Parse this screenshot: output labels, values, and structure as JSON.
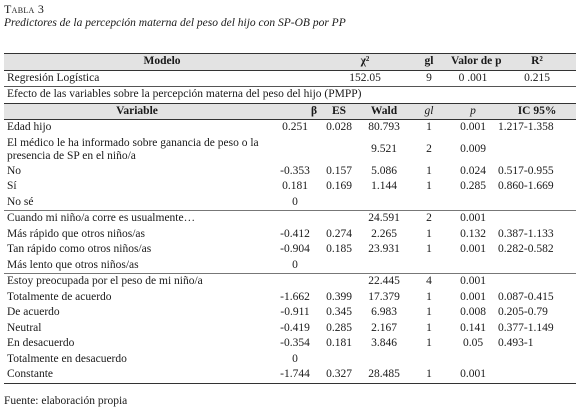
{
  "table_label": "Tabla 3",
  "table_title": "Predictores de la percepción materna del peso del hijo con SP-OB por PP",
  "header": {
    "modelo": "Modelo",
    "chi2": "χ²",
    "gl": "gl",
    "valor_p": "Valor de p",
    "r2": "R²"
  },
  "regresion": {
    "label": "Regresión Logística",
    "chi2": "152.05",
    "gl": "9",
    "valor_p": "0 .001",
    "r2": "0.215"
  },
  "effect_title": "Efecto de las variables sobre la percepción materna del peso del hijo (PMPP)",
  "var_header": {
    "variable": "Variable",
    "beta": "β",
    "es": "ES",
    "wald": "Wald",
    "gl": "gl",
    "p": "p",
    "ic": "IC 95%"
  },
  "rows": [
    {
      "label": "Edad hijo",
      "beta": "0.251",
      "es": "0.028",
      "wald": "80.793",
      "gl": "1",
      "p": "0.001",
      "ic": "1.217-1.358"
    },
    {
      "label": "El médico le ha informado sobre ganancia de peso o la presencia de SP en el niño/a",
      "beta": "",
      "es": "",
      "wald": "9.521",
      "gl": "2",
      "p": "0.009",
      "ic": ""
    },
    {
      "label": "No",
      "beta": "-0.353",
      "es": "0.157",
      "wald": "5.086",
      "gl": "1",
      "p": "0.024",
      "ic": "0.517-0.955"
    },
    {
      "label": "Sí",
      "beta": "0.181",
      "es": "0.169",
      "wald": "1.144",
      "gl": "1",
      "p": "0.285",
      "ic": "0.860-1.669"
    },
    {
      "label": "No sé",
      "beta": "0",
      "es": "",
      "wald": "",
      "gl": "",
      "p": "",
      "ic": ""
    },
    {
      "label": "Cuando mi niño/a corre es usualmente…",
      "beta": "",
      "es": "",
      "wald": "24.591",
      "gl": "2",
      "p": "0.001",
      "ic": ""
    },
    {
      "label": "Más rápido que otros niños/as",
      "beta": "-0.412",
      "es": "0.274",
      "wald": "2.265",
      "gl": "1",
      "p": "0.132",
      "ic": "0.387-1.133"
    },
    {
      "label": "Tan rápido como otros niños/as",
      "beta": "-0.904",
      "es": "0.185",
      "wald": "23.931",
      "gl": "1",
      "p": "0.001",
      "ic": "0.282-0.582"
    },
    {
      "label": "Más lento que otros niños/as",
      "beta": "0",
      "es": "",
      "wald": "",
      "gl": "",
      "p": "",
      "ic": ""
    },
    {
      "label": "Estoy preocupada por el peso de mi niño/a",
      "beta": "",
      "es": "",
      "wald": "22.445",
      "gl": "4",
      "p": "0.001",
      "ic": ""
    },
    {
      "label": "Totalmente de acuerdo",
      "beta": "-1.662",
      "es": "0.399",
      "wald": "17.379",
      "gl": "1",
      "p": "0.001",
      "ic": "0.087-0.415"
    },
    {
      "label": "De acuerdo",
      "beta": "-0.911",
      "es": "0.345",
      "wald": "6.983",
      "gl": "1",
      "p": "0.008",
      "ic": "0.205-0.79"
    },
    {
      "label": "Neutral",
      "beta": "-0.419",
      "es": "0.285",
      "wald": "2.167",
      "gl": "1",
      "p": "0.141",
      "ic": "0.377-1.149"
    },
    {
      "label": "En desacuerdo",
      "beta": "-0.354",
      "es": "0.181",
      "wald": "3.846",
      "gl": "1",
      "p": "0.05",
      "ic": "0.493-1"
    },
    {
      "label": "Totalmente en desacuerdo",
      "beta": "0",
      "es": "",
      "wald": "",
      "gl": "",
      "p": "",
      "ic": ""
    },
    {
      "label": "Constante",
      "beta": "-1.744",
      "es": "0.327",
      "wald": "28.485",
      "gl": "1",
      "p": "0.001",
      "ic": ""
    }
  ],
  "source": "Fuente: elaboración propia"
}
